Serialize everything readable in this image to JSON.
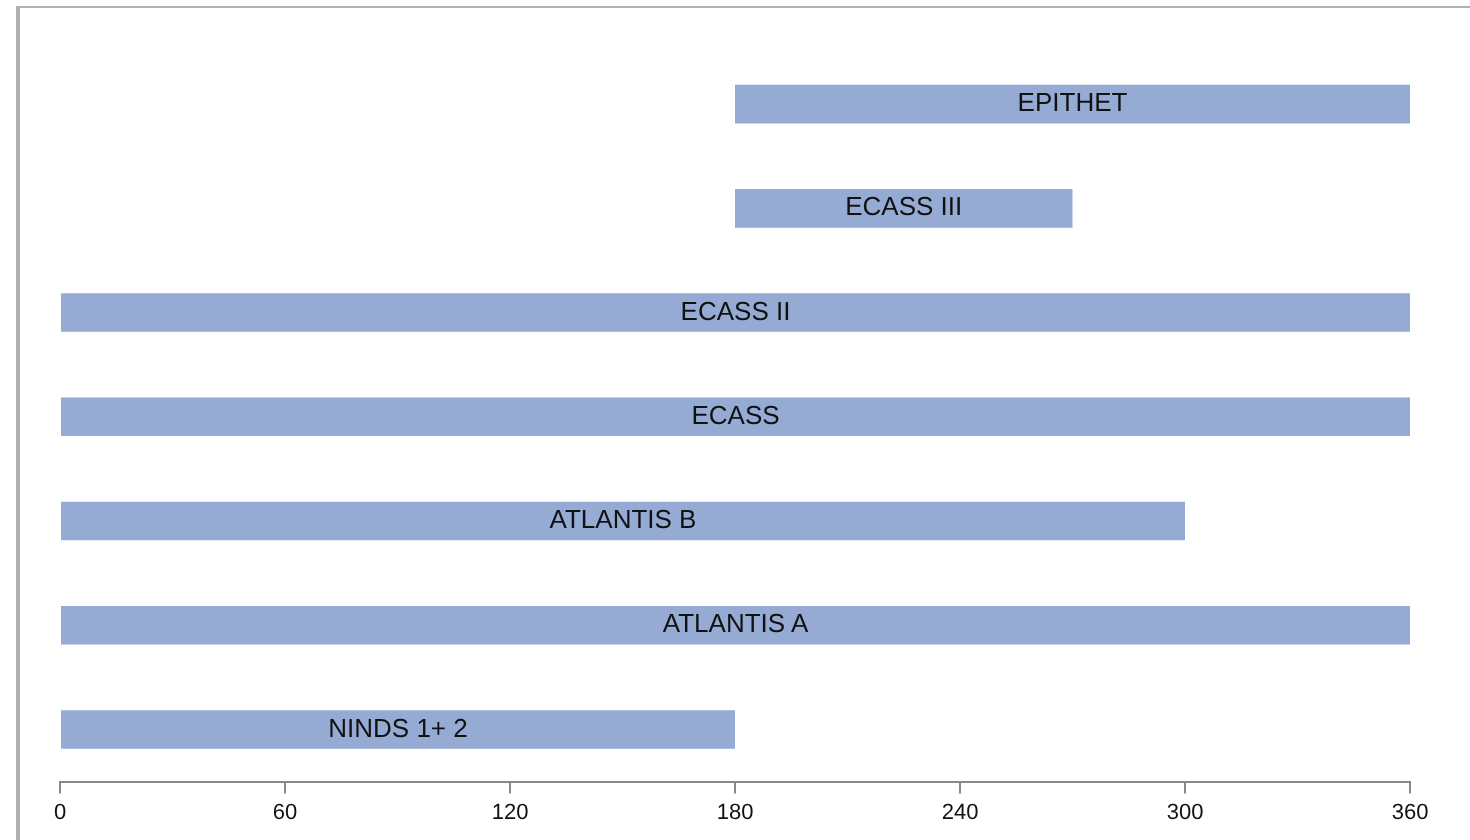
{
  "chart_data": {
    "type": "bar",
    "orientation": "horizontal",
    "categories": [
      "EPITHET",
      "ECASS III",
      "ECASS II",
      "ECASS",
      "ATLANTIS B",
      "ATLANTIS A",
      "NINDS 1+ 2"
    ],
    "base": [
      180,
      180,
      0,
      0,
      0,
      0,
      0
    ],
    "values": [
      180,
      90,
      360,
      360,
      300,
      360,
      180
    ],
    "color": "#95abd4",
    "xlim": [
      0,
      360
    ],
    "xticks": [
      0,
      60,
      120,
      180,
      240,
      300,
      360
    ],
    "grid": false,
    "legend": false
  }
}
